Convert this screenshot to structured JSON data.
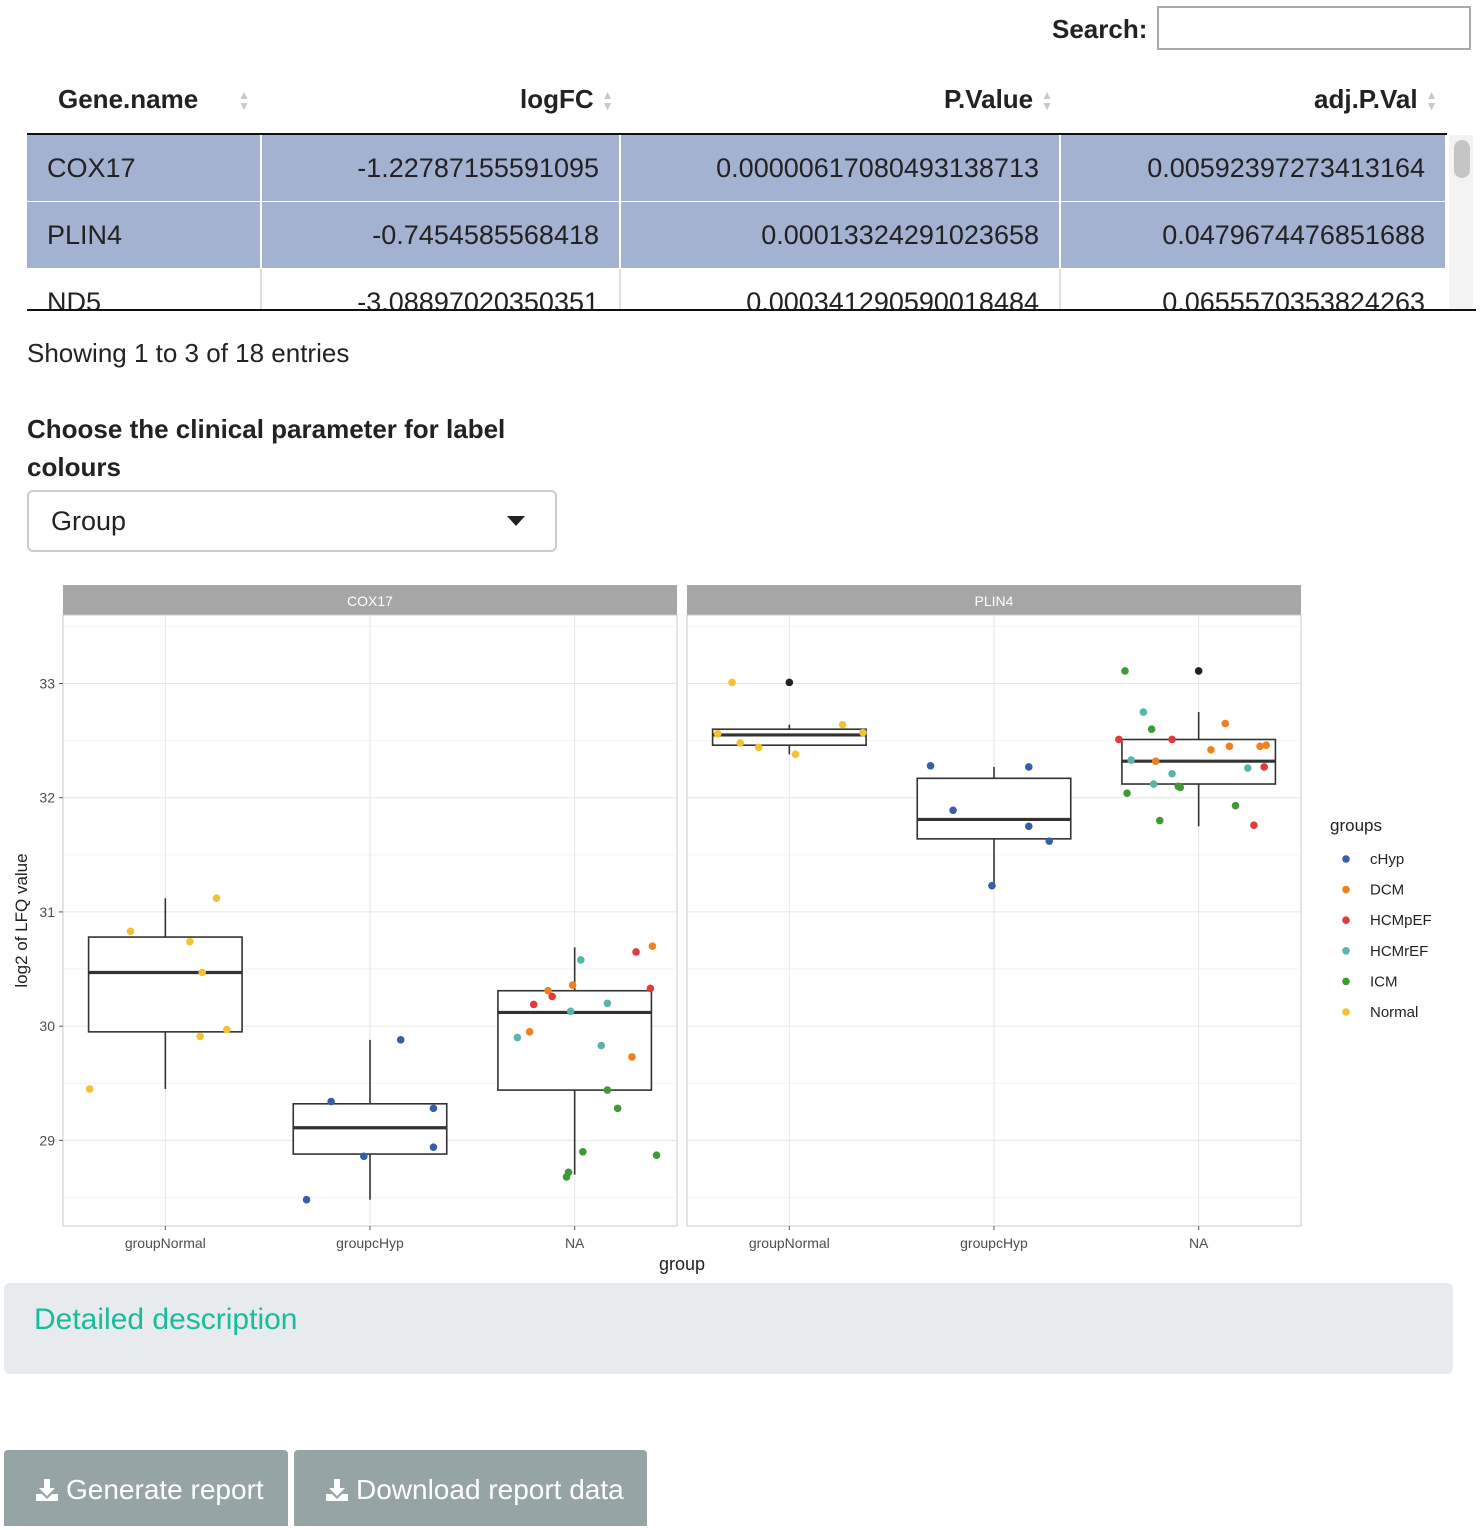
{
  "search": {
    "label": "Search:",
    "value": ""
  },
  "table": {
    "columns": [
      "Gene.name",
      "logFC",
      "P.Value",
      "adj.P.Val"
    ],
    "rows": [
      {
        "gene": "COX17",
        "logFC": "-1.22787155591095",
        "pvalue": "0.00000617080493138713",
        "adjp": "0.00592397273413164",
        "selected": true
      },
      {
        "gene": "PLIN4",
        "logFC": "-0.7454585568418",
        "pvalue": "0.00013324291023658",
        "adjp": "0.0479674476851688",
        "selected": true
      },
      {
        "gene": "ND5",
        "logFC": "-3.08897020350351",
        "pvalue": "0.000341290590018484",
        "adjp": "0.0655570353824263",
        "selected": false
      }
    ],
    "info": "Showing 1 to 3 of 18 entries"
  },
  "clinical_select": {
    "label": "Choose the clinical parameter for label colours",
    "value": "Group"
  },
  "chart_data": {
    "type": "box-jitter",
    "facets": [
      "COX17",
      "PLIN4"
    ],
    "xlabel": "group",
    "ylabel": "log2 of LFQ value",
    "categories": [
      "groupNormal",
      "groupcHyp",
      "NA"
    ],
    "yticks": [
      29,
      30,
      31,
      32,
      33
    ],
    "ylim": [
      28.25,
      33.6
    ],
    "legend": {
      "title": "groups",
      "position": "right",
      "entries": [
        {
          "name": "cHyp",
          "color": "#3a5da8"
        },
        {
          "name": "DCM",
          "color": "#f07f1f"
        },
        {
          "name": "HCMpEF",
          "color": "#e03a3f"
        },
        {
          "name": "HCMrEF",
          "color": "#5ab4a8"
        },
        {
          "name": "ICM",
          "color": "#3f9a36"
        },
        {
          "name": "Normal",
          "color": "#f1c232"
        }
      ]
    },
    "na_color": "#222222",
    "boxes": [
      {
        "facet": "COX17",
        "category": "groupNormal",
        "min": 29.45,
        "q1": 29.95,
        "median": 30.47,
        "q3": 30.78,
        "max": 31.12
      },
      {
        "facet": "COX17",
        "category": "groupcHyp",
        "min": 28.48,
        "q1": 28.88,
        "median": 29.11,
        "q3": 29.32,
        "max": 29.88
      },
      {
        "facet": "COX17",
        "category": "NA",
        "min": 28.7,
        "q1": 29.44,
        "median": 30.12,
        "q3": 30.31,
        "max": 30.69
      },
      {
        "facet": "PLIN4",
        "category": "groupNormal",
        "min": 32.38,
        "q1": 32.46,
        "median": 32.55,
        "q3": 32.6,
        "max": 32.64
      },
      {
        "facet": "PLIN4",
        "category": "groupcHyp",
        "min": 31.22,
        "q1": 31.64,
        "median": 31.81,
        "q3": 32.17,
        "max": 32.27
      },
      {
        "facet": "PLIN4",
        "category": "NA",
        "min": 31.75,
        "q1": 32.12,
        "median": 32.32,
        "q3": 32.51,
        "max": 32.75
      }
    ],
    "points": [
      {
        "facet": "COX17",
        "category": "groupNormal",
        "dx": -0.37,
        "y": 29.45,
        "group": "Normal"
      },
      {
        "facet": "COX17",
        "category": "groupNormal",
        "dx": -0.17,
        "y": 30.83,
        "group": "Normal"
      },
      {
        "facet": "COX17",
        "category": "groupNormal",
        "dx": 0.12,
        "y": 30.74,
        "group": "Normal"
      },
      {
        "facet": "COX17",
        "category": "groupNormal",
        "dx": 0.18,
        "y": 30.47,
        "group": "Normal"
      },
      {
        "facet": "COX17",
        "category": "groupNormal",
        "dx": 0.25,
        "y": 31.12,
        "group": "Normal"
      },
      {
        "facet": "COX17",
        "category": "groupNormal",
        "dx": 0.17,
        "y": 29.91,
        "group": "Normal"
      },
      {
        "facet": "COX17",
        "category": "groupNormal",
        "dx": 0.3,
        "y": 29.97,
        "group": "Normal"
      },
      {
        "facet": "COX17",
        "category": "groupcHyp",
        "dx": -0.31,
        "y": 28.48,
        "group": "cHyp"
      },
      {
        "facet": "COX17",
        "category": "groupcHyp",
        "dx": -0.19,
        "y": 29.34,
        "group": "cHyp"
      },
      {
        "facet": "COX17",
        "category": "groupcHyp",
        "dx": -0.03,
        "y": 28.86,
        "group": "cHyp"
      },
      {
        "facet": "COX17",
        "category": "groupcHyp",
        "dx": 0.15,
        "y": 29.88,
        "group": "cHyp"
      },
      {
        "facet": "COX17",
        "category": "groupcHyp",
        "dx": 0.31,
        "y": 29.28,
        "group": "cHyp"
      },
      {
        "facet": "COX17",
        "category": "groupcHyp",
        "dx": 0.31,
        "y": 28.94,
        "group": "cHyp"
      },
      {
        "facet": "COX17",
        "category": "NA",
        "dx": 0.03,
        "y": 30.58,
        "group": "HCMrEF"
      },
      {
        "facet": "COX17",
        "category": "NA",
        "dx": 0.3,
        "y": 30.65,
        "group": "HCMpEF"
      },
      {
        "facet": "COX17",
        "category": "NA",
        "dx": 0.38,
        "y": 30.7,
        "group": "DCM"
      },
      {
        "facet": "COX17",
        "category": "NA",
        "dx": -0.2,
        "y": 30.19,
        "group": "HCMpEF"
      },
      {
        "facet": "COX17",
        "category": "NA",
        "dx": -0.13,
        "y": 30.31,
        "group": "DCM"
      },
      {
        "facet": "COX17",
        "category": "NA",
        "dx": -0.11,
        "y": 30.26,
        "group": "HCMpEF"
      },
      {
        "facet": "COX17",
        "category": "NA",
        "dx": -0.01,
        "y": 30.36,
        "group": "DCM"
      },
      {
        "facet": "COX17",
        "category": "NA",
        "dx": -0.02,
        "y": 30.13,
        "group": "HCMrEF"
      },
      {
        "facet": "COX17",
        "category": "NA",
        "dx": 0.16,
        "y": 30.2,
        "group": "HCMrEF"
      },
      {
        "facet": "COX17",
        "category": "NA",
        "dx": 0.37,
        "y": 30.33,
        "group": "HCMpEF"
      },
      {
        "facet": "COX17",
        "category": "NA",
        "dx": -0.28,
        "y": 29.9,
        "group": "HCMrEF"
      },
      {
        "facet": "COX17",
        "category": "NA",
        "dx": -0.22,
        "y": 29.95,
        "group": "DCM"
      },
      {
        "facet": "COX17",
        "category": "NA",
        "dx": 0.13,
        "y": 29.83,
        "group": "HCMrEF"
      },
      {
        "facet": "COX17",
        "category": "NA",
        "dx": 0.28,
        "y": 29.73,
        "group": "DCM"
      },
      {
        "facet": "COX17",
        "category": "NA",
        "dx": 0.16,
        "y": 29.44,
        "group": "ICM"
      },
      {
        "facet": "COX17",
        "category": "NA",
        "dx": 0.21,
        "y": 29.28,
        "group": "ICM"
      },
      {
        "facet": "COX17",
        "category": "NA",
        "dx": 0.04,
        "y": 28.9,
        "group": "ICM"
      },
      {
        "facet": "COX17",
        "category": "NA",
        "dx": -0.03,
        "y": 28.72,
        "group": "ICM"
      },
      {
        "facet": "COX17",
        "category": "NA",
        "dx": -0.04,
        "y": 28.68,
        "group": "ICM"
      },
      {
        "facet": "COX17",
        "category": "NA",
        "dx": 0.4,
        "y": 28.87,
        "group": "ICM"
      },
      {
        "facet": "PLIN4",
        "category": "groupNormal",
        "dx": -0.28,
        "y": 33.01,
        "group": "Normal"
      },
      {
        "facet": "PLIN4",
        "category": "groupNormal",
        "dx": 0.0,
        "y": 33.01,
        "group": "NA"
      },
      {
        "facet": "PLIN4",
        "category": "groupNormal",
        "dx": -0.35,
        "y": 32.56,
        "group": "Normal"
      },
      {
        "facet": "PLIN4",
        "category": "groupNormal",
        "dx": -0.24,
        "y": 32.48,
        "group": "Normal"
      },
      {
        "facet": "PLIN4",
        "category": "groupNormal",
        "dx": -0.15,
        "y": 32.44,
        "group": "Normal"
      },
      {
        "facet": "PLIN4",
        "category": "groupNormal",
        "dx": 0.03,
        "y": 32.38,
        "group": "Normal"
      },
      {
        "facet": "PLIN4",
        "category": "groupNormal",
        "dx": 0.26,
        "y": 32.64,
        "group": "Normal"
      },
      {
        "facet": "PLIN4",
        "category": "groupNormal",
        "dx": 0.36,
        "y": 32.57,
        "group": "Normal"
      },
      {
        "facet": "PLIN4",
        "category": "groupcHyp",
        "dx": -0.31,
        "y": 32.28,
        "group": "cHyp"
      },
      {
        "facet": "PLIN4",
        "category": "groupcHyp",
        "dx": 0.17,
        "y": 32.27,
        "group": "cHyp"
      },
      {
        "facet": "PLIN4",
        "category": "groupcHyp",
        "dx": -0.2,
        "y": 31.89,
        "group": "cHyp"
      },
      {
        "facet": "PLIN4",
        "category": "groupcHyp",
        "dx": 0.17,
        "y": 31.75,
        "group": "cHyp"
      },
      {
        "facet": "PLIN4",
        "category": "groupcHyp",
        "dx": 0.27,
        "y": 31.62,
        "group": "cHyp"
      },
      {
        "facet": "PLIN4",
        "category": "groupcHyp",
        "dx": -0.01,
        "y": 31.23,
        "group": "cHyp"
      },
      {
        "facet": "PLIN4",
        "category": "NA",
        "dx": -0.36,
        "y": 33.11,
        "group": "ICM"
      },
      {
        "facet": "PLIN4",
        "category": "NA",
        "dx": 0.0,
        "y": 33.11,
        "group": "NA"
      },
      {
        "facet": "PLIN4",
        "category": "NA",
        "dx": -0.27,
        "y": 32.75,
        "group": "HCMrEF"
      },
      {
        "facet": "PLIN4",
        "category": "NA",
        "dx": -0.23,
        "y": 32.6,
        "group": "ICM"
      },
      {
        "facet": "PLIN4",
        "category": "NA",
        "dx": 0.13,
        "y": 32.65,
        "group": "DCM"
      },
      {
        "facet": "PLIN4",
        "category": "NA",
        "dx": -0.39,
        "y": 32.51,
        "group": "HCMpEF"
      },
      {
        "facet": "PLIN4",
        "category": "NA",
        "dx": -0.13,
        "y": 32.51,
        "group": "HCMpEF"
      },
      {
        "facet": "PLIN4",
        "category": "NA",
        "dx": 0.06,
        "y": 32.42,
        "group": "DCM"
      },
      {
        "facet": "PLIN4",
        "category": "NA",
        "dx": 0.15,
        "y": 32.45,
        "group": "DCM"
      },
      {
        "facet": "PLIN4",
        "category": "NA",
        "dx": 0.3,
        "y": 32.45,
        "group": "DCM"
      },
      {
        "facet": "PLIN4",
        "category": "NA",
        "dx": 0.33,
        "y": 32.46,
        "group": "DCM"
      },
      {
        "facet": "PLIN4",
        "category": "NA",
        "dx": -0.33,
        "y": 32.33,
        "group": "HCMrEF"
      },
      {
        "facet": "PLIN4",
        "category": "NA",
        "dx": -0.21,
        "y": 32.32,
        "group": "DCM"
      },
      {
        "facet": "PLIN4",
        "category": "NA",
        "dx": -0.13,
        "y": 32.21,
        "group": "HCMrEF"
      },
      {
        "facet": "PLIN4",
        "category": "NA",
        "dx": -0.22,
        "y": 32.12,
        "group": "HCMrEF"
      },
      {
        "facet": "PLIN4",
        "category": "NA",
        "dx": -0.1,
        "y": 32.1,
        "group": "ICM"
      },
      {
        "facet": "PLIN4",
        "category": "NA",
        "dx": -0.09,
        "y": 32.09,
        "group": "ICM"
      },
      {
        "facet": "PLIN4",
        "category": "NA",
        "dx": 0.24,
        "y": 32.26,
        "group": "HCMrEF"
      },
      {
        "facet": "PLIN4",
        "category": "NA",
        "dx": 0.32,
        "y": 32.27,
        "group": "HCMpEF"
      },
      {
        "facet": "PLIN4",
        "category": "NA",
        "dx": -0.35,
        "y": 32.04,
        "group": "ICM"
      },
      {
        "facet": "PLIN4",
        "category": "NA",
        "dx": 0.18,
        "y": 31.93,
        "group": "ICM"
      },
      {
        "facet": "PLIN4",
        "category": "NA",
        "dx": -0.19,
        "y": 31.8,
        "group": "ICM"
      },
      {
        "facet": "PLIN4",
        "category": "NA",
        "dx": 0.27,
        "y": 31.76,
        "group": "HCMpEF"
      }
    ]
  },
  "detail": {
    "title": "Detailed description"
  },
  "buttons": {
    "generate": "Generate report",
    "download": "Download report data"
  },
  "colors": {
    "selected_row": "#a4b2d1",
    "accent": "#18bc9c",
    "button": "#95a5a6"
  }
}
